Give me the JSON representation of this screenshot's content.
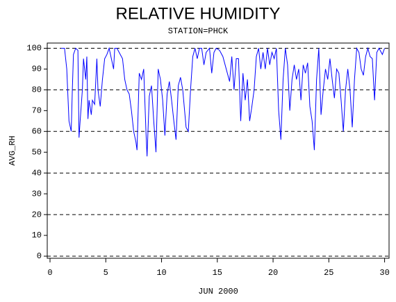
{
  "chart_data": {
    "type": "line",
    "title": "RELATIVE HUMIDITY",
    "subtitle": "STATION=PHCK",
    "y_label": "AVG_RH",
    "x_label": "JUN 2000",
    "xlim": [
      -0.25,
      30.4
    ],
    "ylim": [
      -1,
      102.5
    ],
    "xticks": [
      0,
      5,
      10,
      15,
      20,
      25,
      30
    ],
    "yticks": [
      0,
      10,
      20,
      30,
      40,
      50,
      60,
      70,
      80,
      90,
      100
    ],
    "grid_lines": [
      0,
      20,
      40,
      60,
      80,
      100
    ],
    "series": [
      {
        "name": "AVG_RH",
        "color": "#0000ff",
        "x": [
          1.0,
          1.3,
          1.5,
          1.7,
          1.9,
          2.0,
          2.1,
          2.3,
          2.5,
          2.6,
          2.7,
          2.9,
          3.0,
          3.2,
          3.3,
          3.4,
          3.5,
          3.7,
          3.8,
          4.0,
          4.2,
          4.3,
          4.5,
          4.7,
          4.9,
          5.1,
          5.3,
          5.5,
          5.7,
          5.8,
          6.0,
          6.3,
          6.5,
          6.7,
          6.9,
          7.1,
          7.3,
          7.5,
          7.7,
          7.8,
          8.0,
          8.2,
          8.4,
          8.6,
          8.7,
          8.9,
          9.1,
          9.3,
          9.5,
          9.7,
          9.9,
          10.1,
          10.3,
          10.5,
          10.7,
          10.9,
          11.1,
          11.3,
          11.5,
          11.7,
          11.9,
          12.2,
          12.4,
          12.6,
          12.8,
          13.0,
          13.2,
          13.4,
          13.6,
          13.8,
          14.0,
          14.3,
          14.5,
          14.7,
          14.9,
          15.2,
          15.5,
          15.8,
          16.1,
          16.3,
          16.5,
          16.7,
          16.9,
          17.1,
          17.3,
          17.5,
          17.7,
          17.9,
          18.1,
          18.3,
          18.5,
          18.7,
          18.9,
          19.1,
          19.3,
          19.5,
          19.7,
          19.9,
          20.1,
          20.3,
          20.5,
          20.7,
          20.9,
          21.1,
          21.3,
          21.5,
          21.7,
          21.9,
          22.1,
          22.3,
          22.5,
          22.7,
          22.9,
          23.1,
          23.3,
          23.5,
          23.7,
          23.9,
          24.1,
          24.3,
          24.5,
          24.7,
          24.9,
          25.1,
          25.3,
          25.5,
          25.7,
          25.9,
          26.1,
          26.3,
          26.5,
          26.7,
          26.9,
          27.1,
          27.3,
          27.5,
          27.7,
          27.9,
          28.1,
          28.3,
          28.5,
          28.7,
          28.9,
          29.1,
          29.3,
          29.5,
          29.8,
          30.0
        ],
        "values": [
          100,
          100,
          90,
          65,
          60,
          80,
          97,
          100,
          99,
          57,
          65,
          80,
          95,
          85,
          96,
          66,
          75,
          68,
          75,
          73,
          95,
          80,
          72,
          85,
          95,
          97,
          100,
          95,
          90,
          100,
          100,
          97,
          95,
          85,
          80,
          78,
          70,
          60,
          55,
          51,
          88,
          85,
          90,
          60,
          48,
          77,
          82,
          65,
          50,
          90,
          85,
          75,
          58,
          78,
          84,
          75,
          65,
          56,
          82,
          86,
          80,
          62,
          60,
          80,
          96,
          100,
          95,
          100,
          100,
          92,
          98,
          100,
          88,
          98,
          100,
          99,
          96,
          90,
          84,
          96,
          80,
          95,
          95,
          65,
          88,
          75,
          85,
          65,
          72,
          80,
          96,
          100,
          90,
          98,
          90,
          100,
          92,
          98,
          95,
          100,
          70,
          56,
          85,
          100,
          92,
          70,
          85,
          92,
          85,
          90,
          75,
          92,
          88,
          93,
          72,
          65,
          51,
          85,
          100,
          68,
          80,
          90,
          85,
          95,
          85,
          76,
          90,
          88,
          75,
          60,
          80,
          90,
          80,
          62,
          85,
          100,
          98,
          90,
          87,
          96,
          100,
          96,
          95,
          75,
          98,
          100,
          97,
          100
        ]
      }
    ]
  }
}
